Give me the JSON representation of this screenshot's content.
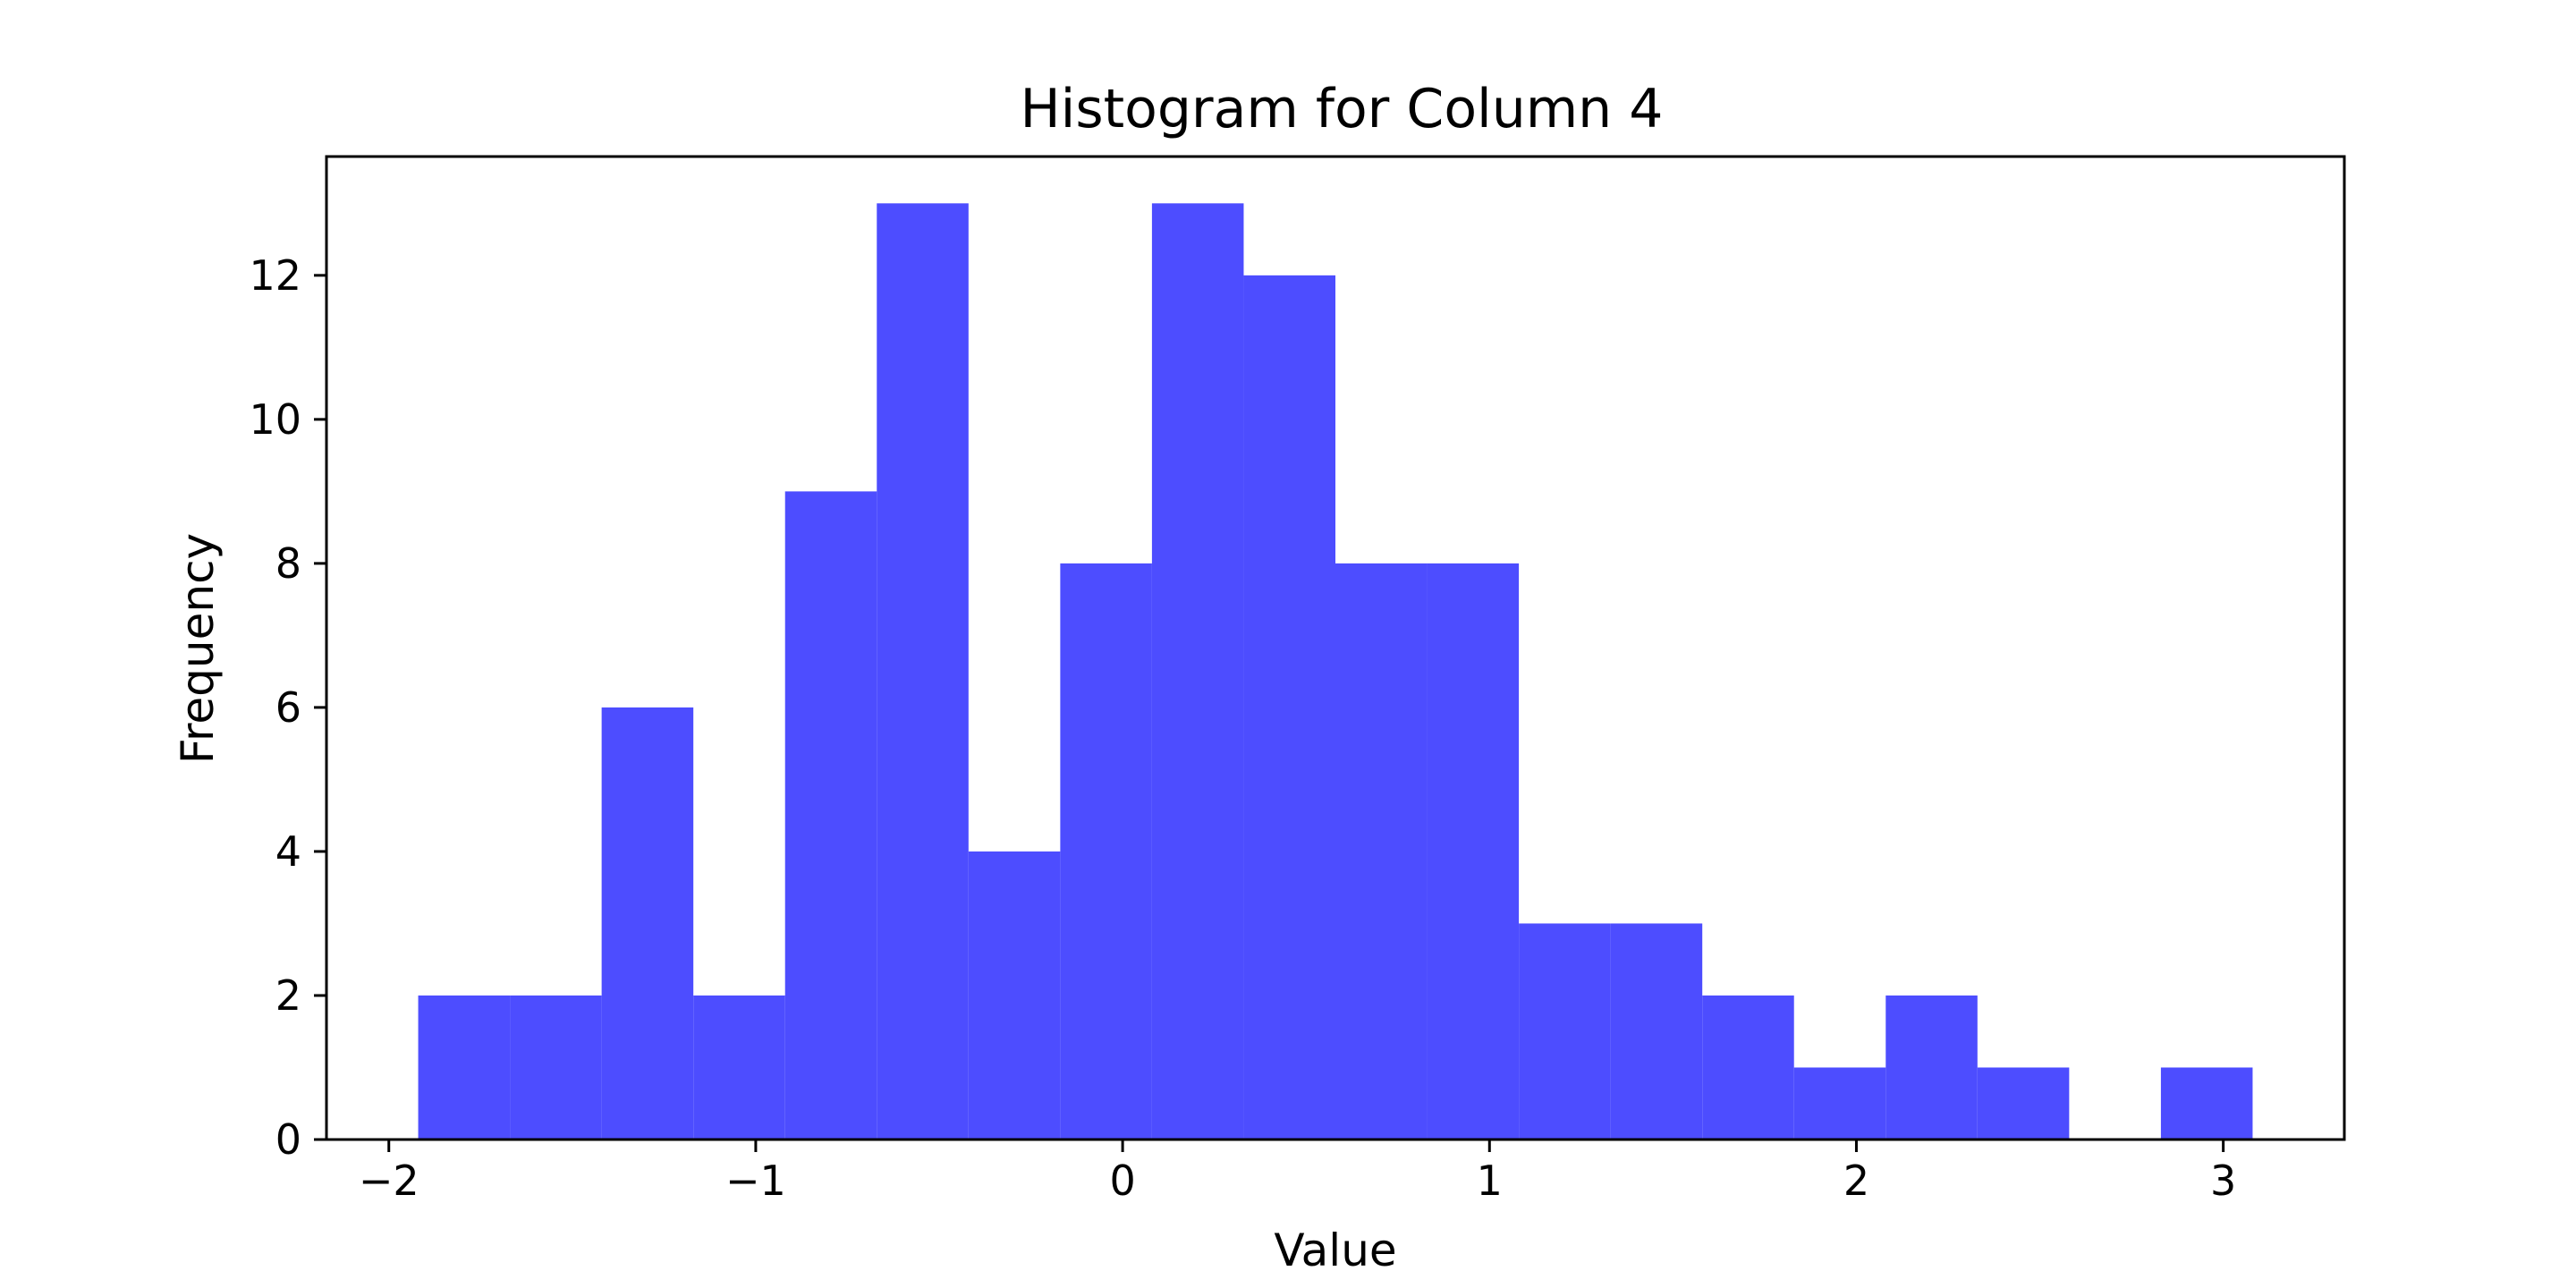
{
  "chart_data": {
    "type": "bar",
    "title": "Histogram for Column 4",
    "xlabel": "Value",
    "ylabel": "Frequency",
    "bin_edges": [
      -1.92,
      -1.67,
      -1.42,
      -1.17,
      -0.92,
      -0.67,
      -0.42,
      -0.17,
      0.08,
      0.33,
      0.58,
      0.83,
      1.08,
      1.33,
      1.58,
      1.83,
      2.08,
      2.33,
      2.58,
      2.83,
      3.08
    ],
    "values": [
      2,
      2,
      6,
      2,
      9,
      13,
      4,
      8,
      13,
      12,
      8,
      8,
      3,
      3,
      2,
      1,
      2,
      1,
      0,
      1
    ],
    "xlim": [
      -2.17,
      3.33
    ],
    "ylim": [
      0,
      13.65
    ],
    "xticks": [
      -2,
      -1,
      0,
      1,
      2,
      3
    ],
    "xtick_labels": [
      "−2",
      "−1",
      "0",
      "1",
      "2",
      "3"
    ],
    "yticks": [
      0,
      2,
      4,
      6,
      8,
      10,
      12
    ],
    "ytick_labels": [
      "0",
      "2",
      "4",
      "6",
      "8",
      "10",
      "12"
    ],
    "grid": false,
    "bar_color": "#4d4dff"
  }
}
